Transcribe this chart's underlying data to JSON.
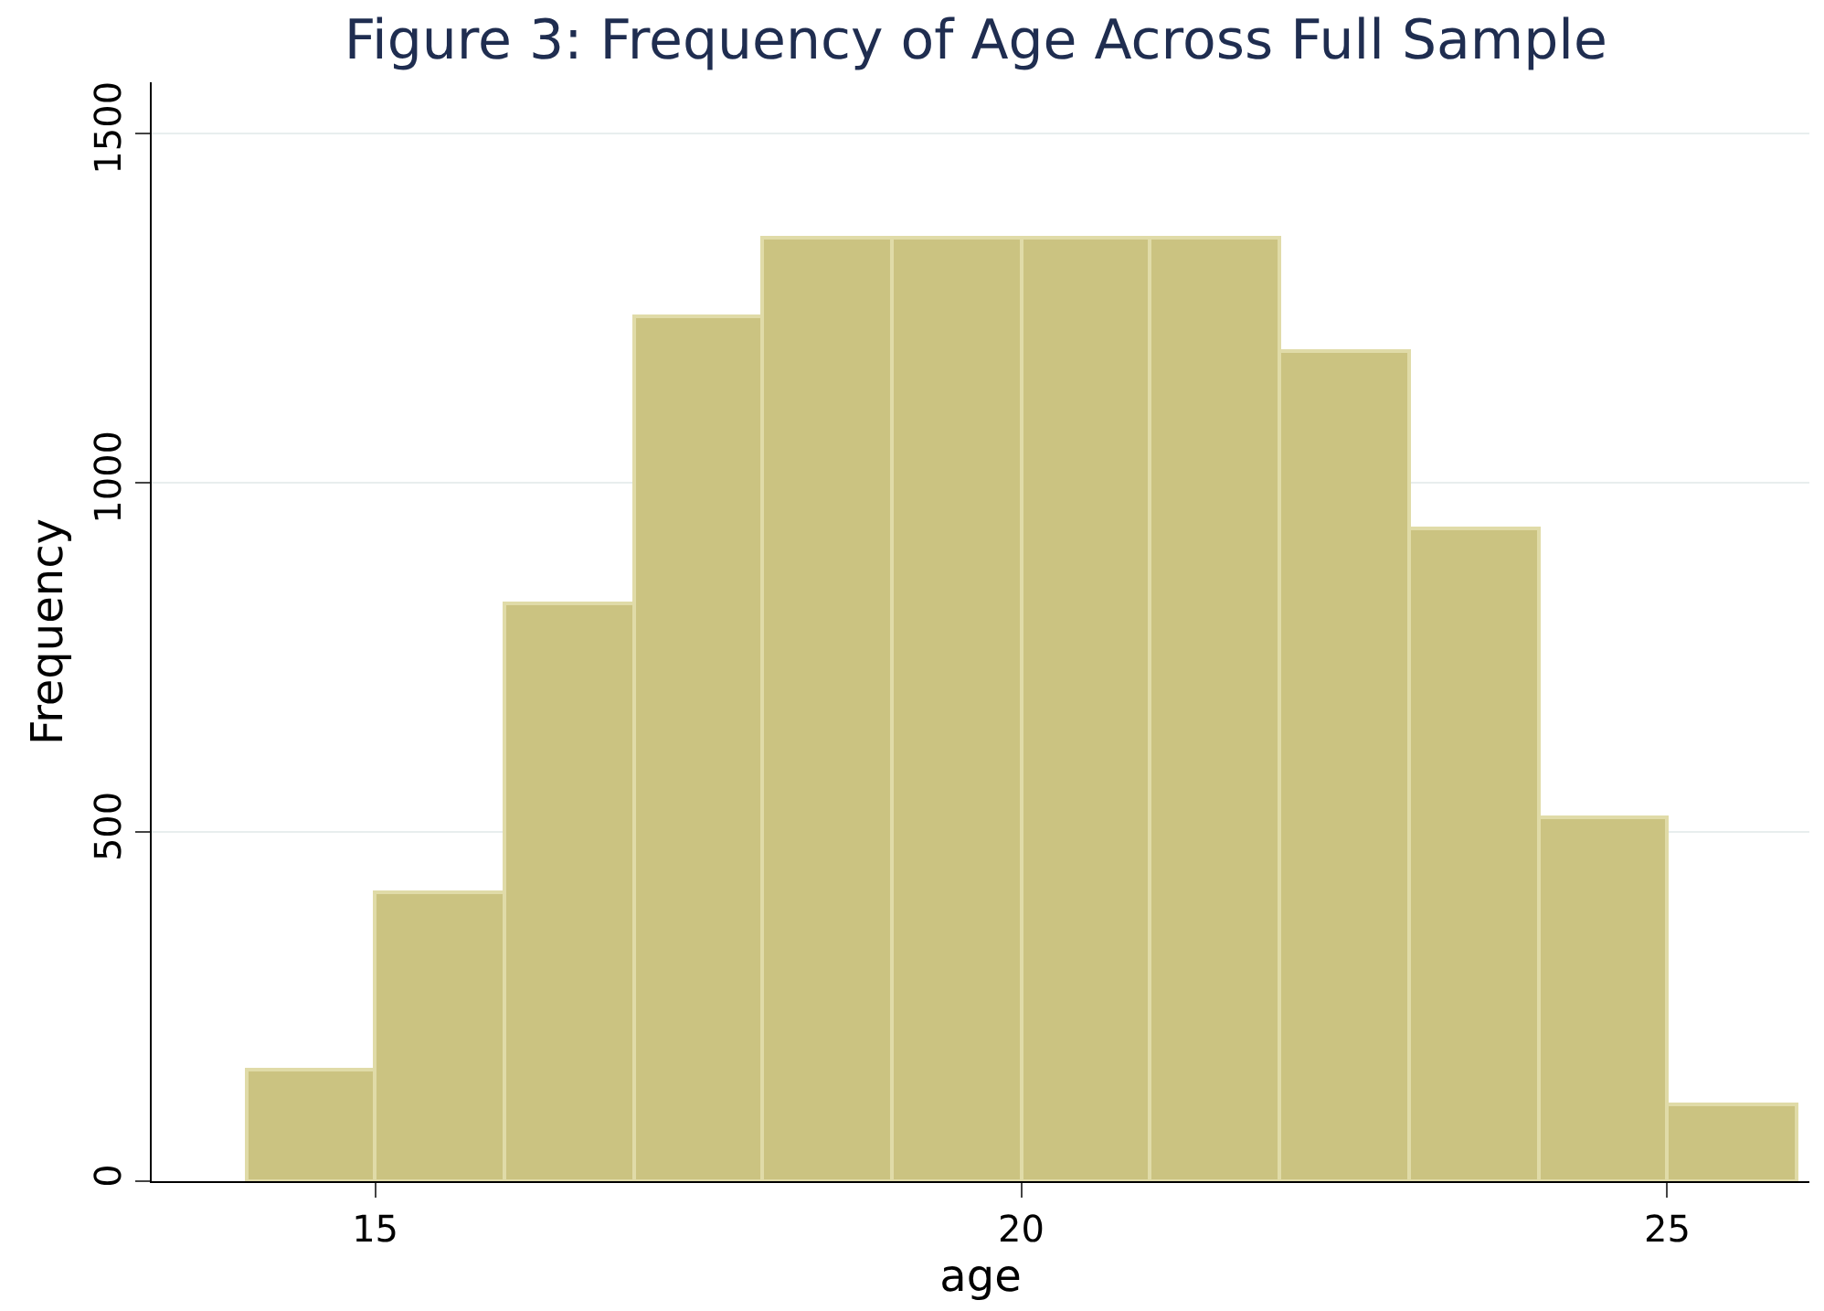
{
  "chart_data": {
    "type": "histogram",
    "title": "Figure 3: Frequency of Age Across Full Sample",
    "xlabel": "age",
    "ylabel": "Frequency",
    "bins": [
      14,
      15,
      16,
      17,
      18,
      19,
      20,
      21,
      22,
      23,
      24,
      25,
      26
    ],
    "values": [
      160,
      414,
      827,
      1238,
      1351,
      1351,
      1351,
      1351,
      1188,
      935,
      521,
      110
    ],
    "color": "#cbc381",
    "xlim": [
      13.27,
      26.1
    ],
    "xticks": [
      15,
      20,
      25
    ],
    "ylim": [
      0,
      1573
    ],
    "yticks": [
      0,
      500,
      1000,
      1500
    ],
    "grid": "y"
  }
}
